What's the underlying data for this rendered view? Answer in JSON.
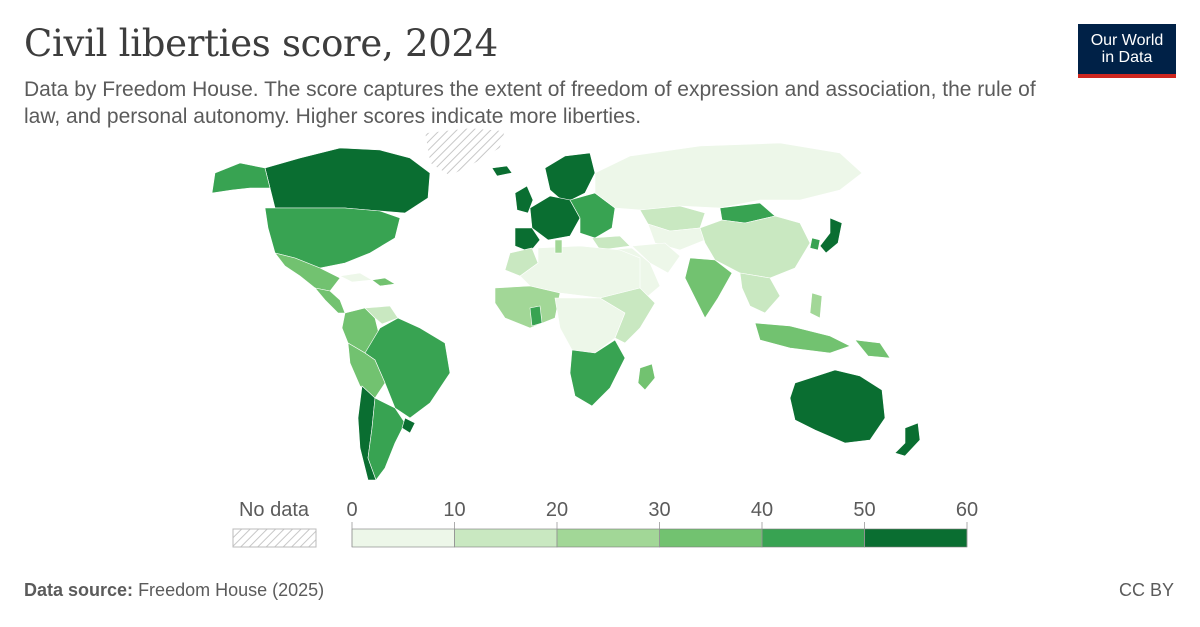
{
  "header": {
    "title": "Civil liberties score, 2024",
    "subtitle": "Data by Freedom House. The score captures the extent of freedom of expression and association, the rule of law, and personal autonomy. Higher scores indicate more liberties."
  },
  "logo": {
    "line1": "Our World",
    "line2": "in Data",
    "bg_color": "#002147",
    "accent_color": "#ce261e"
  },
  "legend": {
    "no_data_label": "No data",
    "ticks": [
      "0",
      "10",
      "20",
      "30",
      "40",
      "50",
      "60"
    ],
    "bins": [
      {
        "from": 0,
        "to": 10,
        "color": "#edf7e9"
      },
      {
        "from": 10,
        "to": 20,
        "color": "#c9e8c1"
      },
      {
        "from": 20,
        "to": 30,
        "color": "#a2d797"
      },
      {
        "from": 30,
        "to": 40,
        "color": "#72c270"
      },
      {
        "from": 40,
        "to": 50,
        "color": "#38a352"
      },
      {
        "from": 50,
        "to": 60,
        "color": "#0a6e31"
      }
    ]
  },
  "map_regions": [
    {
      "name": "Canada",
      "bin": 5
    },
    {
      "name": "United States",
      "bin": 4
    },
    {
      "name": "Alaska",
      "bin": 4
    },
    {
      "name": "Mexico",
      "bin": 3
    },
    {
      "name": "Central America",
      "bin": 3
    },
    {
      "name": "Caribbean",
      "bin": 3
    },
    {
      "name": "Cuba",
      "bin": 0
    },
    {
      "name": "Greenland",
      "bin": -1
    },
    {
      "name": "Iceland",
      "bin": 5
    },
    {
      "name": "Northern South America",
      "bin": 3
    },
    {
      "name": "Venezuela",
      "bin": 1
    },
    {
      "name": "Brazil",
      "bin": 4
    },
    {
      "name": "Peru and Bolivia",
      "bin": 3
    },
    {
      "name": "Chile",
      "bin": 5
    },
    {
      "name": "Argentina",
      "bin": 4
    },
    {
      "name": "Uruguay",
      "bin": 5
    },
    {
      "name": "Scandinavia",
      "bin": 5
    },
    {
      "name": "Western Europe",
      "bin": 5
    },
    {
      "name": "Iberia",
      "bin": 5
    },
    {
      "name": "United Kingdom",
      "bin": 5
    },
    {
      "name": "Eastern Europe",
      "bin": 4
    },
    {
      "name": "Russia",
      "bin": 0
    },
    {
      "name": "Kazakhstan",
      "bin": 1
    },
    {
      "name": "Central Asia",
      "bin": 0
    },
    {
      "name": "Mongolia",
      "bin": 4
    },
    {
      "name": "China",
      "bin": 1
    },
    {
      "name": "Middle East",
      "bin": 0
    },
    {
      "name": "Turkey",
      "bin": 1
    },
    {
      "name": "Iran",
      "bin": 0
    },
    {
      "name": "India",
      "bin": 3
    },
    {
      "name": "Southeast Asia",
      "bin": 1
    },
    {
      "name": "Japan",
      "bin": 5
    },
    {
      "name": "South Korea",
      "bin": 4
    },
    {
      "name": "Indonesia",
      "bin": 3
    },
    {
      "name": "Philippines",
      "bin": 2
    },
    {
      "name": "Papua New Guinea",
      "bin": 3
    },
    {
      "name": "North Africa",
      "bin": 0
    },
    {
      "name": "Morocco",
      "bin": 1
    },
    {
      "name": "Tunisia",
      "bin": 2
    },
    {
      "name": "West Africa",
      "bin": 2
    },
    {
      "name": "Ghana",
      "bin": 4
    },
    {
      "name": "Central Africa",
      "bin": 0
    },
    {
      "name": "East Africa",
      "bin": 1
    },
    {
      "name": "Southern Africa",
      "bin": 4
    },
    {
      "name": "Madagascar",
      "bin": 3
    },
    {
      "name": "Australia",
      "bin": 5
    },
    {
      "name": "New Zealand",
      "bin": 5
    }
  ],
  "footer": {
    "source_label": "Data source:",
    "source_value": "Freedom House (2025)",
    "license": "CC BY"
  }
}
